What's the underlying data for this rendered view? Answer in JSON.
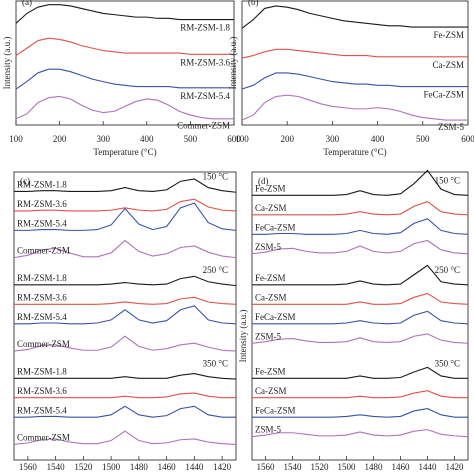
{
  "chart_data": [
    {
      "type": "line",
      "panel_label": "(a)",
      "x_label": "Temperature (°C)",
      "y_label": "Intensity (a.u.)",
      "x": [
        100,
        125,
        150,
        175,
        200,
        225,
        250,
        275,
        300,
        325,
        350,
        375,
        400,
        425,
        450,
        475,
        500,
        525,
        550,
        575,
        600
      ],
      "xlim": [
        100,
        600
      ],
      "xticks": [
        100,
        200,
        300,
        400,
        500,
        600
      ],
      "ylim": [
        0,
        10
      ],
      "series": [
        {
          "name": "RM-ZSM-1.8",
          "color": "#1a1a1a",
          "values": [
            8.2,
            9.0,
            9.5,
            9.7,
            9.7,
            9.6,
            9.4,
            9.2,
            9.0,
            8.9,
            8.8,
            8.7,
            8.7,
            8.6,
            8.6,
            8.5,
            8.5,
            8.5,
            8.5,
            8.5,
            8.5
          ]
        },
        {
          "name": "RM-ZSM-3.6",
          "color": "#e0524a",
          "values": [
            5.6,
            6.2,
            6.8,
            7.0,
            6.9,
            6.7,
            6.4,
            6.2,
            6.0,
            5.9,
            5.8,
            5.8,
            5.8,
            5.8,
            5.8,
            5.8,
            5.7,
            5.7,
            5.7,
            5.7,
            5.7
          ]
        },
        {
          "name": "RM-ZSM-5.4",
          "color": "#3a52a8",
          "values": [
            2.9,
            3.5,
            4.2,
            4.5,
            4.5,
            4.3,
            4.0,
            3.7,
            3.5,
            3.3,
            3.2,
            3.1,
            3.1,
            3.1,
            3.1,
            3.0,
            3.0,
            3.0,
            3.0,
            3.0,
            3.0
          ]
        },
        {
          "name": "Commer-ZSM",
          "color": "#b070c0",
          "values": [
            0.5,
            0.9,
            1.8,
            2.2,
            2.3,
            2.1,
            1.6,
            1.2,
            1.0,
            1.1,
            1.5,
            1.9,
            2.1,
            2.0,
            1.6,
            1.1,
            0.8,
            0.6,
            0.5,
            0.5,
            0.5
          ]
        }
      ]
    },
    {
      "type": "line",
      "panel_label": "(b)",
      "x_label": "Temperature (°C)",
      "y_label": "Intensity (a.u.)",
      "x": [
        100,
        125,
        150,
        175,
        200,
        225,
        250,
        275,
        300,
        325,
        350,
        375,
        400,
        425,
        450,
        475,
        500,
        525,
        550,
        575,
        600
      ],
      "xlim": [
        100,
        600
      ],
      "xticks": [
        100,
        200,
        300,
        400,
        500,
        600
      ],
      "ylim": [
        0,
        10
      ],
      "series": [
        {
          "name": "Fe-ZSM",
          "color": "#1a1a1a",
          "values": [
            7.8,
            8.5,
            9.4,
            9.6,
            9.5,
            9.3,
            9.0,
            8.8,
            8.6,
            8.4,
            8.3,
            8.2,
            8.1,
            8.0,
            8.0,
            7.9,
            7.9,
            7.9,
            7.9,
            7.9,
            7.9
          ]
        },
        {
          "name": "Ca-ZSM",
          "color": "#e0524a",
          "values": [
            5.4,
            5.6,
            5.9,
            6.1,
            6.1,
            6.0,
            5.9,
            5.8,
            5.7,
            5.6,
            5.6,
            5.6,
            5.5,
            5.5,
            5.5,
            5.5,
            5.5,
            5.5,
            5.5,
            5.5,
            5.5
          ]
        },
        {
          "name": "FeCa-ZSM",
          "color": "#3a52a8",
          "values": [
            2.9,
            3.2,
            3.8,
            4.2,
            4.2,
            4.1,
            3.9,
            3.7,
            3.5,
            3.4,
            3.3,
            3.3,
            3.2,
            3.2,
            3.1,
            3.1,
            3.1,
            3.1,
            3.1,
            3.1,
            3.1
          ]
        },
        {
          "name": "ZSM-5",
          "color": "#b070c0",
          "values": [
            0.4,
            0.8,
            1.8,
            2.3,
            2.4,
            2.3,
            2.0,
            1.7,
            1.5,
            1.4,
            1.3,
            1.3,
            1.4,
            1.3,
            1.1,
            0.8,
            0.6,
            0.5,
            0.4,
            0.4,
            0.4
          ]
        }
      ]
    },
    {
      "type": "line",
      "panel_label": "(c)",
      "x": [
        1570,
        1560,
        1550,
        1540,
        1530,
        1520,
        1510,
        1500,
        1490,
        1480,
        1470,
        1460,
        1450,
        1440,
        1430,
        1420,
        1410
      ],
      "xlim": [
        1570,
        1410
      ],
      "xticks": [
        1560,
        1540,
        1520,
        1500,
        1480,
        1460,
        1440,
        1420
      ],
      "ylim": [
        0,
        37
      ],
      "groups": [
        {
          "label": "150 °C",
          "series": [
            {
              "name": "RM-ZSM-1.8",
              "color": "#1a1a1a",
              "values": [
                34.5,
                34.5,
                34.6,
                34.6,
                34.5,
                34.5,
                34.5,
                34.6,
                35.0,
                34.6,
                34.5,
                34.7,
                35.8,
                36.1,
                35.0,
                34.6,
                34.4
              ]
            },
            {
              "name": "RM-ZSM-3.6",
              "color": "#e0524a",
              "values": [
                32,
                32,
                32.1,
                32.1,
                32,
                32,
                32,
                32.1,
                32.4,
                32.1,
                32,
                32.2,
                33.2,
                33.5,
                32.5,
                32.1,
                32
              ]
            },
            {
              "name": "RM-ZSM-5.4",
              "color": "#3a52a8",
              "values": [
                29.5,
                29.5,
                29.6,
                29.6,
                29.5,
                29.5,
                29.6,
                30.2,
                32.3,
                30.3,
                29.6,
                30.0,
                32.4,
                33.0,
                30.5,
                29.7,
                29.5
              ]
            },
            {
              "name": "Commer-ZSM",
              "color": "#b070c0",
              "values": [
                26.0,
                26.3,
                27.0,
                27.2,
                26.6,
                26.1,
                26.1,
                26.6,
                28.2,
                26.8,
                26.2,
                26.5,
                27.3,
                27.5,
                26.7,
                26.2,
                26.0
              ]
            }
          ]
        },
        {
          "label": "250 °C",
          "series": [
            {
              "name": "RM-ZSM-1.8",
              "color": "#1a1a1a",
              "values": [
                22.5,
                22.5,
                22.5,
                22.5,
                22.5,
                22.5,
                22.5,
                22.6,
                22.8,
                22.6,
                22.5,
                22.6,
                23.3,
                23.6,
                22.9,
                22.6,
                22.4
              ]
            },
            {
              "name": "RM-ZSM-3.6",
              "color": "#e0524a",
              "values": [
                20,
                20,
                20,
                20,
                20,
                20,
                20,
                20.1,
                20.3,
                20.1,
                20,
                20.1,
                20.7,
                20.9,
                20.3,
                20.1,
                20
              ]
            },
            {
              "name": "RM-ZSM-5.4",
              "color": "#3a52a8",
              "values": [
                17.5,
                17.5,
                17.6,
                17.6,
                17.5,
                17.5,
                17.6,
                18.0,
                19.3,
                18.0,
                17.6,
                17.9,
                19.3,
                19.8,
                18.0,
                17.6,
                17.5
              ]
            },
            {
              "name": "Commer-ZSM",
              "color": "#b070c0",
              "values": [
                14.0,
                14.2,
                14.7,
                14.8,
                14.4,
                14.1,
                14.1,
                14.5,
                15.9,
                14.6,
                14.1,
                14.3,
                14.8,
                15.0,
                14.5,
                14.1,
                14.0
              ]
            }
          ]
        },
        {
          "label": "350 °C",
          "series": [
            {
              "name": "RM-ZSM-1.8",
              "color": "#1a1a1a",
              "values": [
                10.5,
                10.5,
                10.5,
                10.5,
                10.5,
                10.5,
                10.5,
                10.5,
                10.7,
                10.5,
                10.5,
                10.5,
                10.9,
                11.1,
                10.7,
                10.5,
                10.4
              ]
            },
            {
              "name": "RM-ZSM-3.6",
              "color": "#e0524a",
              "values": [
                8,
                8,
                8,
                8,
                8,
                8,
                8,
                8,
                8.2,
                8,
                8,
                8.1,
                8.5,
                8.6,
                8.2,
                8,
                8
              ]
            },
            {
              "name": "RM-ZSM-5.4",
              "color": "#3a52a8",
              "values": [
                5.5,
                5.5,
                5.6,
                5.6,
                5.5,
                5.5,
                5.5,
                5.8,
                6.9,
                5.8,
                5.5,
                5.7,
                6.6,
                6.9,
                5.8,
                5.5,
                5.5
              ]
            },
            {
              "name": "Commer-ZSM",
              "color": "#b070c0",
              "values": [
                2.0,
                2.2,
                2.6,
                2.7,
                2.3,
                2.1,
                2.1,
                2.5,
                3.7,
                2.5,
                2.1,
                2.2,
                2.6,
                2.7,
                2.3,
                2.1,
                2.0
              ]
            }
          ]
        }
      ]
    },
    {
      "type": "line",
      "panel_label": "(d)",
      "y_label": "Intensity (a.u.)",
      "x": [
        1570,
        1560,
        1550,
        1540,
        1530,
        1520,
        1510,
        1500,
        1490,
        1480,
        1470,
        1460,
        1450,
        1440,
        1430,
        1420,
        1410
      ],
      "xlim": [
        1570,
        1410
      ],
      "xticks": [
        1560,
        1540,
        1520,
        1500,
        1480,
        1460,
        1440,
        1420
      ],
      "ylim": [
        0,
        37
      ],
      "groups": [
        {
          "label": "150 °C",
          "series": [
            {
              "name": "Fe-ZSM",
              "color": "#1a1a1a",
              "values": [
                34,
                34,
                34,
                34,
                34,
                34,
                34,
                34.1,
                34.6,
                34.1,
                34,
                34.2,
                35.5,
                37.2,
                34.8,
                34.1,
                34
              ]
            },
            {
              "name": "Ca-ZSM",
              "color": "#e0524a",
              "values": [
                31.5,
                31.5,
                31.5,
                31.5,
                31.5,
                31.5,
                31.5,
                31.6,
                31.9,
                31.6,
                31.5,
                31.6,
                32.6,
                33.2,
                31.9,
                31.6,
                31.5
              ]
            },
            {
              "name": "FeCa-ZSM",
              "color": "#3a52a8",
              "values": [
                29,
                29,
                29.1,
                29.1,
                29,
                29,
                29,
                29.1,
                29.5,
                29.1,
                29,
                29.2,
                30.4,
                31.0,
                29.5,
                29.1,
                29
              ]
            },
            {
              "name": "ZSM-5",
              "color": "#b070c0",
              "values": [
                26.5,
                26.7,
                27.1,
                27.2,
                26.8,
                26.6,
                26.6,
                26.8,
                27.5,
                26.8,
                26.6,
                26.8,
                27.8,
                28.2,
                27.0,
                26.6,
                26.5
              ]
            }
          ]
        },
        {
          "label": "250 °C",
          "series": [
            {
              "name": "Fe-ZSM",
              "color": "#1a1a1a",
              "values": [
                22.5,
                22.5,
                22.5,
                22.5,
                22.5,
                22.5,
                22.5,
                22.6,
                23.0,
                22.6,
                22.5,
                22.6,
                23.8,
                25.0,
                22.9,
                22.6,
                22.5
              ]
            },
            {
              "name": "Ca-ZSM",
              "color": "#e0524a",
              "values": [
                20,
                20,
                20,
                20,
                20,
                20,
                20,
                20,
                20.3,
                20.0,
                20,
                20.1,
                20.9,
                21.4,
                20.3,
                20.1,
                20
              ]
            },
            {
              "name": "FeCa-ZSM",
              "color": "#3a52a8",
              "values": [
                17.5,
                17.5,
                17.5,
                17.5,
                17.5,
                17.5,
                17.5,
                17.6,
                17.9,
                17.6,
                17.5,
                17.6,
                18.6,
                19.1,
                17.9,
                17.6,
                17.5
              ]
            },
            {
              "name": "ZSM-5",
              "color": "#b070c0",
              "values": [
                15,
                15.2,
                15.5,
                15.6,
                15.3,
                15.1,
                15.1,
                15.2,
                15.7,
                15.2,
                15.1,
                15.2,
                15.9,
                16.2,
                15.4,
                15.1,
                15
              ]
            }
          ]
        },
        {
          "label": "350 °C",
          "series": [
            {
              "name": "Fe-ZSM",
              "color": "#1a1a1a",
              "values": [
                10.5,
                10.5,
                10.5,
                10.5,
                10.5,
                10.5,
                10.5,
                10.5,
                10.8,
                10.5,
                10.5,
                10.6,
                11.3,
                11.9,
                10.8,
                10.5,
                10.5
              ]
            },
            {
              "name": "Ca-ZSM",
              "color": "#e0524a",
              "values": [
                8,
                8,
                8,
                8,
                8,
                8,
                8,
                8,
                8.2,
                8,
                8,
                8.1,
                8.6,
                8.9,
                8.2,
                8,
                8
              ]
            },
            {
              "name": "FeCa-ZSM",
              "color": "#3a52a8",
              "values": [
                5.5,
                5.5,
                5.5,
                5.5,
                5.5,
                5.5,
                5.5,
                5.6,
                5.8,
                5.6,
                5.5,
                5.6,
                6.3,
                6.6,
                5.8,
                5.5,
                5.5
              ]
            },
            {
              "name": "ZSM-5",
              "color": "#b070c0",
              "values": [
                3,
                3.2,
                3.5,
                3.5,
                3.3,
                3.1,
                3.1,
                3.2,
                3.6,
                3.2,
                3.1,
                3.2,
                3.7,
                3.9,
                3.3,
                3.1,
                3
              ]
            }
          ]
        }
      ]
    }
  ]
}
